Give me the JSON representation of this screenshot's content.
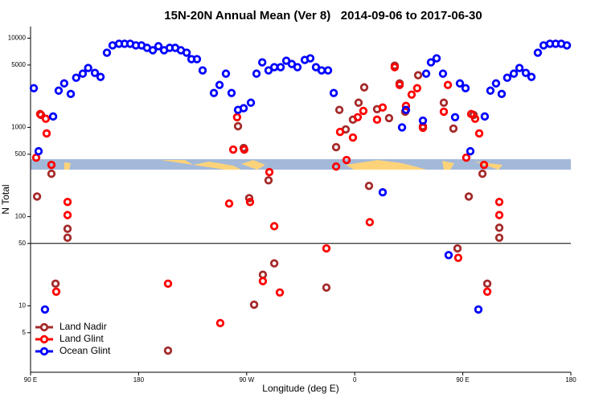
{
  "chart_data": {
    "type": "scatter",
    "title": "15N-20N Annual Mean (Ver 8)   2014-09-06 to 2017-06-30",
    "x_label": "Longitude (deg E)",
    "y_label": "N Total",
    "log_y": true,
    "hline": 50,
    "legend": "bottom-left",
    "xlim": [
      90,
      540
    ],
    "ylim": [
      1.8,
      13500
    ],
    "xticks": [
      {
        "value": 90,
        "label": "90 E"
      },
      {
        "value": 180,
        "label": "180"
      },
      {
        "value": 270,
        "label": "90 W"
      },
      {
        "value": 360,
        "label": "0"
      },
      {
        "value": 450,
        "label": "90 E"
      },
      {
        "value": 540,
        "label": "180"
      }
    ],
    "yticks": [
      5,
      10,
      50,
      100,
      500,
      1000,
      5000,
      10000
    ],
    "series": [
      {
        "name": "Land Nadir",
        "color": "#a52a2a",
        "x": [
          95.4,
          98.7,
          107.4,
          120.8,
          120.8,
          110.8,
          204.5,
          262.8,
          267.5,
          272.1,
          276.2,
          283.5,
          288.2,
          293,
          336.4,
          344.5,
          347.2,
          352.5,
          358.5,
          363.2,
          367.9,
          371.9,
          378.6,
          388.6,
          393.3,
          397.4,
          402,
          412.8,
          416.8,
          434.2,
          442.2,
          445.6,
          455,
          459,
          466.4,
          480.4,
          480.4,
          470.4
        ],
        "values": [
          168,
          1380,
          302,
          73,
          58,
          17.7,
          3.15,
          1030,
          588,
          161,
          10.3,
          22.3,
          255,
          29.9,
          16,
          600,
          1570,
          950,
          1220,
          1890,
          2810,
          221,
          1600,
          1270,
          4920,
          3110,
          1500,
          3840,
          1030,
          1890,
          970,
          44,
          168,
          1380,
          302,
          75,
          58,
          17.7
        ]
      },
      {
        "name": "Land Glint",
        "color": "#ff0000",
        "x": [
          94.7,
          98,
          102.7,
          103.4,
          107.4,
          111.4,
          120.8,
          120.8,
          204.5,
          248,
          255.4,
          258.8,
          262,
          268,
          272.8,
          283.5,
          288.9,
          293,
          297.6,
          336.4,
          344.5,
          347.8,
          353.2,
          358.5,
          362.5,
          367.2,
          372.5,
          378.6,
          383.3,
          393.3,
          397.4,
          402.7,
          407.4,
          412,
          416.8,
          434.2,
          437.6,
          446.2,
          452.9,
          457,
          460.3,
          463.7,
          467.7,
          470.4,
          480.4,
          480.4
        ],
        "values": [
          458,
          1410,
          1250,
          855,
          380,
          14.4,
          146,
          104,
          17.7,
          6.4,
          140,
          564,
          1300,
          564,
          146,
          18.9,
          315,
          78,
          14.1,
          44,
          364,
          890,
          430,
          770,
          1300,
          1530,
          86.5,
          1220,
          1670,
          4730,
          2990,
          1740,
          2330,
          2750,
          990,
          1500,
          2990,
          34.5,
          458,
          1410,
          1250,
          855,
          380,
          14.4,
          146,
          104
        ]
      },
      {
        "name": "Ocean Glint",
        "color": "#0000ff",
        "x": [
          92.7,
          96.7,
          102,
          108.8,
          113.4,
          118,
          123.5,
          128,
          133.5,
          138,
          143.6,
          148.3,
          153.6,
          158.3,
          163.7,
          168.3,
          173,
          177.7,
          182.4,
          187,
          191.8,
          196.5,
          201.2,
          205.9,
          210.5,
          215.2,
          220,
          224,
          228.6,
          233.3,
          242.7,
          247.4,
          252.7,
          257.4,
          262.8,
          267.5,
          273.5,
          278.2,
          283,
          288.2,
          293,
          298.3,
          303,
          307.6,
          312.3,
          318.4,
          323,
          327.7,
          332.4,
          337.8,
          342.5,
          383.3,
          399.4,
          402.7,
          416.8,
          419.5,
          423.5,
          428.2,
          433.5,
          438.2,
          443.6,
          447.6,
          452.3,
          456.3,
          463,
          468.3,
          473,
          477.7,
          482.4,
          487,
          492.5,
          497.2,
          502.5,
          507.2,
          512.5,
          517.3,
          522.6,
          527.3,
          532,
          536.7
        ],
        "values": [
          2750,
          540,
          9.1,
          1325,
          2580,
          3110,
          2370,
          3600,
          4000,
          4630,
          4080,
          3680,
          6870,
          8300,
          8650,
          8650,
          8650,
          8300,
          8300,
          7790,
          7320,
          8120,
          7320,
          7790,
          7790,
          7320,
          6870,
          5820,
          5820,
          4350,
          2430,
          2990,
          4000,
          2430,
          1570,
          1640,
          1890,
          4000,
          5350,
          4350,
          4730,
          4730,
          5580,
          5130,
          4730,
          5700,
          5940,
          4730,
          4350,
          4350,
          2430,
          187,
          1000,
          1570,
          1190,
          4000,
          5350,
          5940,
          4000,
          37,
          1300,
          3110,
          2750,
          540,
          9.1,
          1325,
          2580,
          3110,
          2370,
          3600,
          4000,
          4630,
          4080,
          3680,
          6870,
          8300,
          8650,
          8650,
          8650,
          8300
        ]
      }
    ]
  }
}
